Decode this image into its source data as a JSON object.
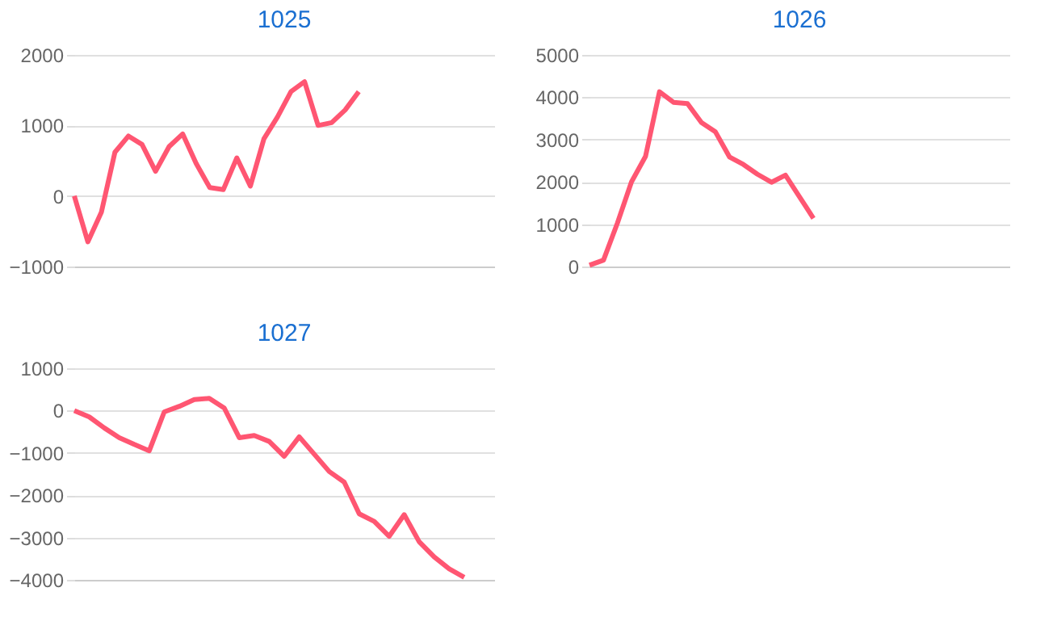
{
  "chart_data": [
    {
      "type": "line",
      "title": "1025",
      "categories": [
        null,
        null,
        null,
        null,
        null,
        null,
        null,
        null,
        null,
        null,
        null,
        null,
        null,
        null,
        null,
        null,
        null,
        null,
        null,
        null,
        null,
        null,
        null,
        null,
        null,
        null,
        null,
        null,
        null,
        null,
        null,
        null
      ],
      "series": [
        {
          "color": "#ff5672",
          "values": [
            0,
            -650,
            -230,
            620,
            850,
            730,
            350,
            700,
            880,
            460,
            120,
            90,
            540,
            140,
            810,
            1120,
            1480,
            1620,
            1000,
            1040,
            1220,
            1480,
            null,
            null,
            null,
            null,
            null,
            null,
            null,
            null,
            null,
            null
          ]
        }
      ],
      "ylim": [
        -1000,
        2000
      ],
      "yticks": [
        -1000,
        0,
        1000,
        2000
      ],
      "grid": "y",
      "tick_labels": "y",
      "marker": "none",
      "line_style": "solid"
    },
    {
      "type": "line",
      "title": "1026",
      "categories": [
        null,
        null,
        null,
        null,
        null,
        null,
        null,
        null,
        null,
        null,
        null,
        null,
        null,
        null,
        null,
        null,
        null,
        null,
        null,
        null,
        null,
        null,
        null,
        null,
        null,
        null,
        null,
        null,
        null,
        null,
        null
      ],
      "series": [
        {
          "color": "#ff5672",
          "values": [
            30,
            150,
            1030,
            2000,
            2600,
            4130,
            3880,
            3850,
            3400,
            3180,
            2590,
            2410,
            2180,
            1990,
            2160,
            1650,
            1140,
            null,
            null,
            null,
            null,
            null,
            null,
            null,
            null,
            null,
            null,
            null,
            null,
            null,
            null
          ]
        }
      ],
      "ylim": [
        0,
        5000
      ],
      "yticks": [
        0,
        1000,
        2000,
        3000,
        4000,
        5000
      ],
      "grid": "y",
      "tick_labels": "y",
      "marker": "none",
      "line_style": "solid"
    },
    {
      "type": "line",
      "title": "1027",
      "categories": [
        null,
        null,
        null,
        null,
        null,
        null,
        null,
        null,
        null,
        null,
        null,
        null,
        null,
        null,
        null,
        null,
        null,
        null,
        null,
        null,
        null,
        null,
        null,
        null,
        null,
        null,
        null,
        null,
        null
      ],
      "series": [
        {
          "color": "#ff5672",
          "values": [
            0,
            -150,
            -410,
            -640,
            -800,
            -950,
            -30,
            100,
            260,
            290,
            60,
            -640,
            -590,
            -730,
            -1080,
            -620,
            -1030,
            -1440,
            -1690,
            -2440,
            -2620,
            -2970,
            -2460,
            -3100,
            -3460,
            -3740,
            -3940,
            null,
            null
          ]
        }
      ],
      "ylim": [
        -4000,
        1000
      ],
      "yticks": [
        -4000,
        -3000,
        -2000,
        -1000,
        0,
        1000
      ],
      "grid": "y",
      "tick_labels": "y",
      "marker": "none",
      "line_style": "solid"
    }
  ]
}
